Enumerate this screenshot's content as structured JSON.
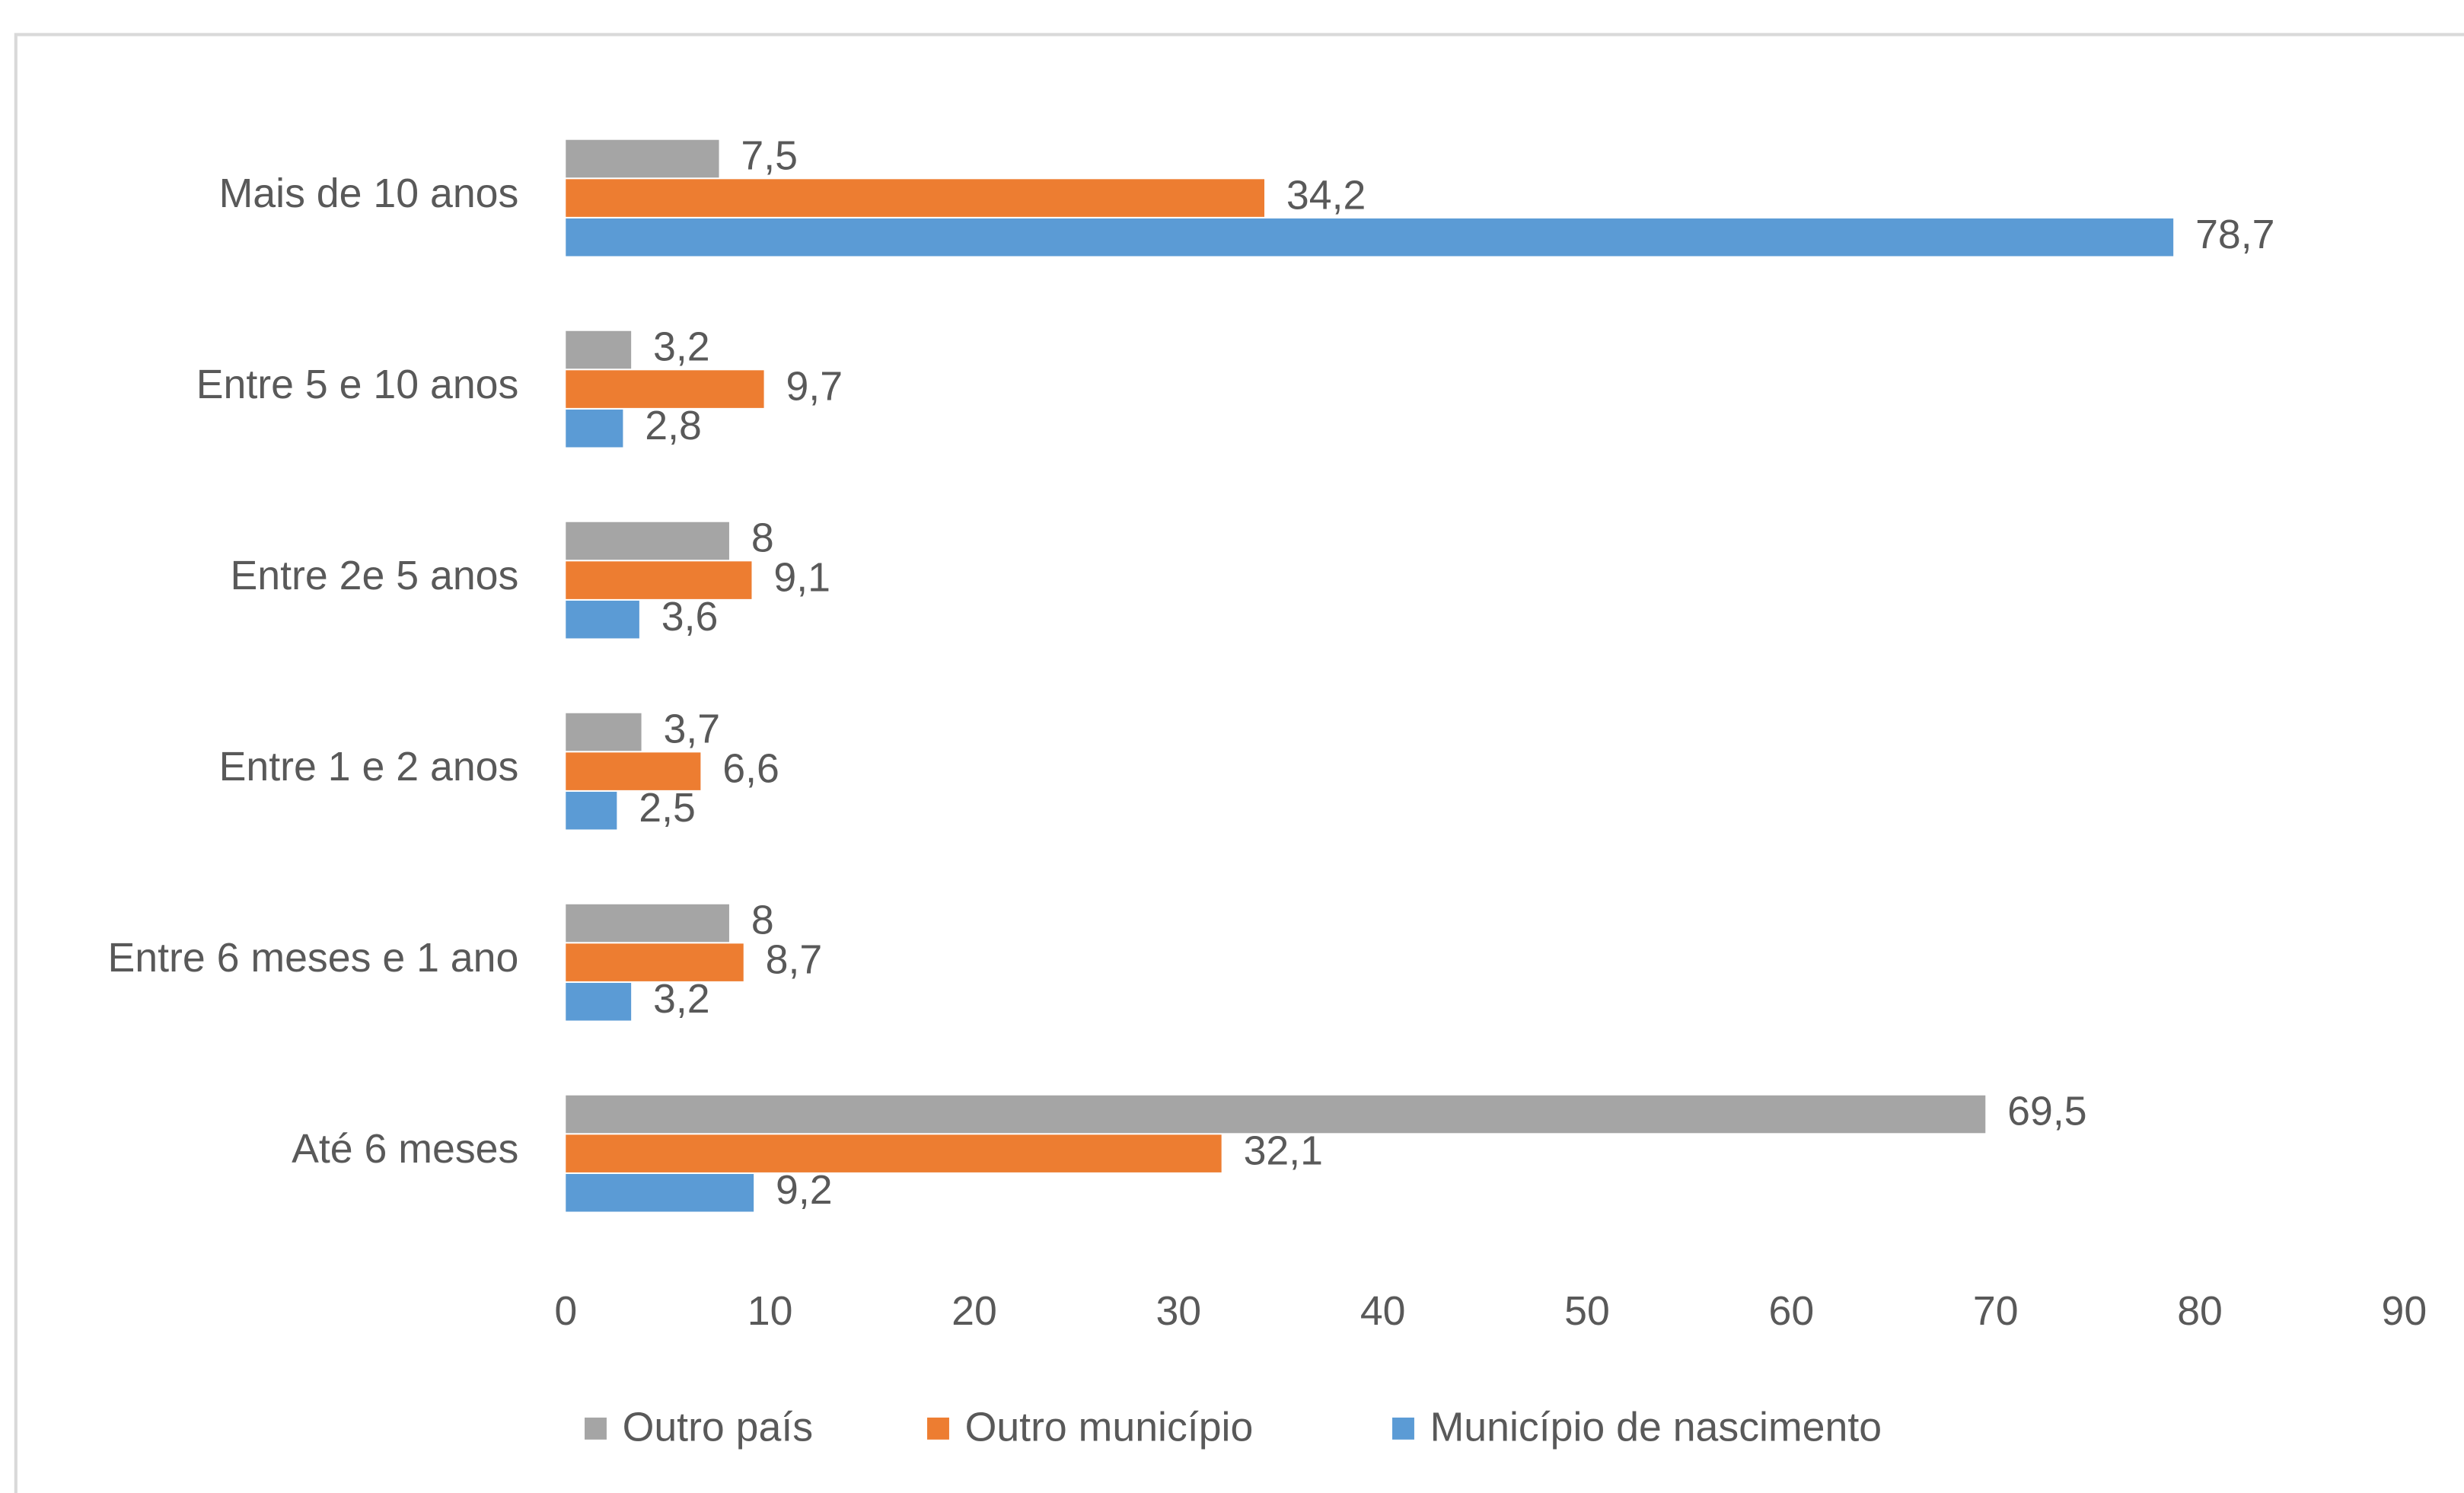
{
  "chart_data": {
    "type": "hbar",
    "categories": [
      "Mais de 10 anos",
      "Entre 5 e 10 anos",
      "Entre 2e 5 anos",
      "Entre 1 e 2 anos",
      "Entre 6 meses e 1 ano",
      "Até 6 meses"
    ],
    "series": [
      {
        "name": "Outro país",
        "color": "#a5a5a5",
        "values": [
          7.5,
          3.2,
          8,
          3.7,
          8,
          69.5
        ],
        "value_labels": [
          "7,5",
          "3,2",
          "8",
          "3,7",
          "8",
          "69,5"
        ]
      },
      {
        "name": "Outro município",
        "color": "#ed7d31",
        "values": [
          34.2,
          9.7,
          9.1,
          6.6,
          8.7,
          32.1
        ],
        "value_labels": [
          "34,2",
          "9,7",
          "9,1",
          "6,6",
          "8,7",
          "32,1"
        ]
      },
      {
        "name": "Município de nascimento",
        "color": "#5b9bd5",
        "values": [
          78.7,
          2.8,
          3.6,
          2.5,
          3.2,
          9.2
        ],
        "value_labels": [
          "78,7",
          "2,8",
          "3,6",
          "2,5",
          "3,2",
          "9,2"
        ]
      }
    ],
    "xlim": [
      0,
      90
    ],
    "xticks": [
      0,
      10,
      20,
      30,
      40,
      50,
      60,
      70,
      80,
      90
    ],
    "legend": "bottom"
  }
}
